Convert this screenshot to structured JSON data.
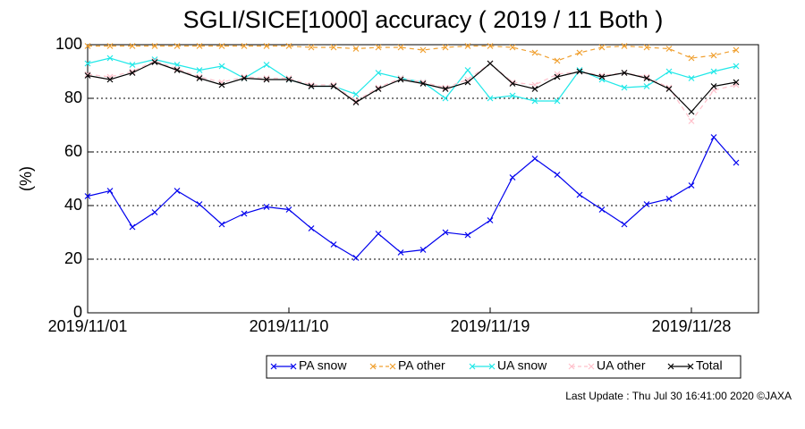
{
  "chart_data": {
    "type": "line",
    "title": "SGLI/SICE[1000] accuracy ( 2019 / 11 Both )",
    "y_label": "(%)",
    "footer": "Last Update : Thu Jul 30 16:41:00 2020 ©JAXA",
    "x": [
      "2019/11/01",
      "2019/11/02",
      "2019/11/03",
      "2019/11/04",
      "2019/11/05",
      "2019/11/06",
      "2019/11/07",
      "2019/11/08",
      "2019/11/09",
      "2019/11/10",
      "2019/11/11",
      "2019/11/12",
      "2019/11/13",
      "2019/11/14",
      "2019/11/15",
      "2019/11/16",
      "2019/11/17",
      "2019/11/18",
      "2019/11/19",
      "2019/11/20",
      "2019/11/21",
      "2019/11/22",
      "2019/11/23",
      "2019/11/24",
      "2019/11/25",
      "2019/11/26",
      "2019/11/27",
      "2019/11/28",
      "2019/11/29",
      "2019/11/30"
    ],
    "xlim": [
      "2019/11/01",
      "2019/12/01"
    ],
    "xticks": [
      "2019/11/01",
      "2019/11/10",
      "2019/11/19",
      "2019/11/28"
    ],
    "ylim": [
      0,
      100
    ],
    "yticks": [
      0,
      20,
      40,
      60,
      80,
      100
    ],
    "grid": true,
    "series": [
      {
        "name": "PA snow",
        "color": "#0000ee",
        "dash": false,
        "values": [
          43.5,
          45.5,
          32,
          37.5,
          45.5,
          40.5,
          33,
          37,
          39.5,
          38.5,
          31.5,
          25.5,
          20.5,
          29.5,
          22.5,
          23.5,
          30,
          29,
          34.5,
          50.5,
          57.5,
          51.5,
          44,
          38.5,
          33,
          40.5,
          42.5,
          47.5,
          65.5,
          56
        ]
      },
      {
        "name": "PA other",
        "color": "#f0a030",
        "dash": true,
        "values": [
          99.5,
          99.5,
          99.5,
          99.5,
          99.5,
          99.5,
          99.5,
          99.5,
          99.5,
          99.5,
          99,
          99,
          98.5,
          99,
          99,
          98,
          99,
          99.5,
          99.5,
          99,
          97,
          94,
          97,
          99,
          99.5,
          99,
          98.5,
          95,
          96,
          98
        ]
      },
      {
        "name": "UA snow",
        "color": "#20e8e8",
        "dash": false,
        "values": [
          93,
          95,
          92.5,
          94.5,
          92.5,
          90.5,
          92,
          87.5,
          92.5,
          87,
          84.5,
          84.5,
          81.5,
          89.5,
          87.5,
          86,
          80,
          90.5,
          80,
          81,
          79,
          79,
          90.5,
          87,
          84,
          84.5,
          90,
          87.5,
          90,
          92
        ]
      },
      {
        "name": "UA other",
        "color": "#ffc0cb",
        "dash": true,
        "values": [
          89,
          88,
          90,
          94,
          91,
          88,
          86,
          88,
          87.5,
          87.5,
          85,
          85,
          79,
          84,
          87.5,
          86,
          84,
          87,
          93,
          86,
          85,
          89,
          90,
          88.5,
          89.5,
          88,
          84,
          71.5,
          83,
          85
        ]
      },
      {
        "name": "Total",
        "color": "#000000",
        "dash": false,
        "values": [
          88.5,
          87,
          89.5,
          93.5,
          90.5,
          87.5,
          85,
          87.5,
          87,
          87,
          84.5,
          84.5,
          78.5,
          83.5,
          87,
          85.5,
          83.5,
          86,
          93,
          85.5,
          83.5,
          88,
          90,
          88,
          89.5,
          87.5,
          83.5,
          75,
          84.5,
          86
        ]
      }
    ]
  }
}
